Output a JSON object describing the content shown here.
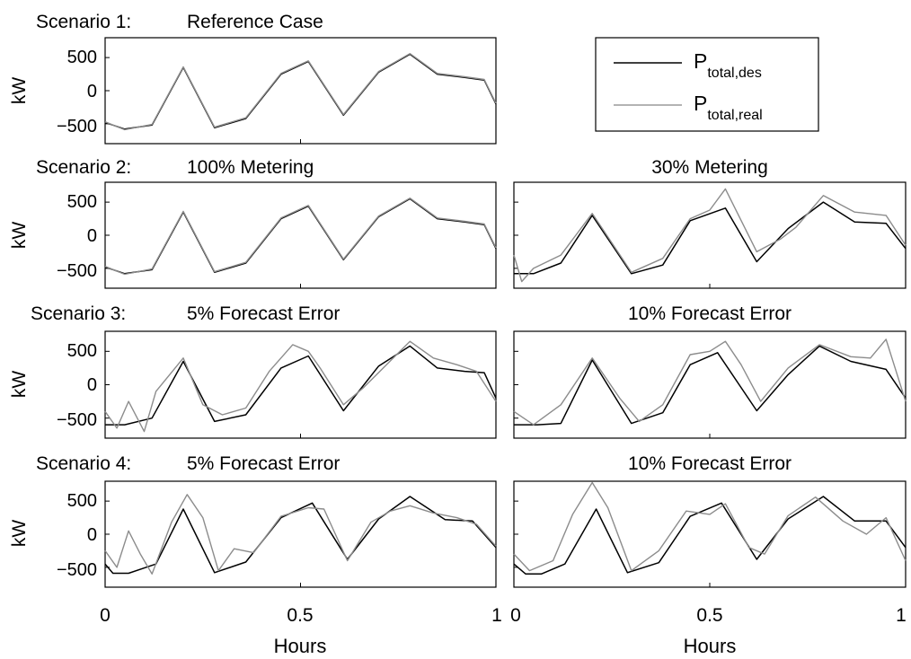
{
  "chart_data": [
    {
      "type": "line",
      "scenario_label": "Scenario 1:",
      "title": "Reference Case",
      "ylabel": "kW",
      "xlabel": "",
      "xlim": [
        0,
        1
      ],
      "ylim": [
        -800,
        800
      ],
      "yticks": [
        "500",
        "0",
        "−500"
      ],
      "xticks": [],
      "series": [
        {
          "name": "des",
          "x": [
            0,
            0.05,
            0.12,
            0.2,
            0.28,
            0.36,
            0.45,
            0.52,
            0.61,
            0.7,
            0.78,
            0.85,
            0.92,
            0.97,
            1.0
          ],
          "y": [
            -480,
            -580,
            -520,
            350,
            -560,
            -420,
            250,
            440,
            -370,
            280,
            550,
            250,
            200,
            160,
            -200
          ]
        },
        {
          "name": "real",
          "x": [
            0,
            0.05,
            0.12,
            0.2,
            0.28,
            0.36,
            0.45,
            0.52,
            0.61,
            0.7,
            0.78,
            0.85,
            0.92,
            0.97,
            1.0
          ],
          "y": [
            -470,
            -590,
            -510,
            360,
            -550,
            -410,
            260,
            450,
            -360,
            290,
            560,
            260,
            210,
            170,
            -190
          ]
        }
      ]
    },
    {
      "type": "line",
      "scenario_label": "Scenario 2:",
      "title": "100% Metering",
      "ylabel": "kW",
      "xlabel": "",
      "xlim": [
        0,
        1
      ],
      "ylim": [
        -800,
        800
      ],
      "yticks": [
        "500",
        "0",
        "−500"
      ],
      "xticks": [],
      "series": [
        {
          "name": "des",
          "x": [
            0,
            0.05,
            0.12,
            0.2,
            0.28,
            0.36,
            0.45,
            0.52,
            0.61,
            0.7,
            0.78,
            0.85,
            0.92,
            0.97,
            1.0
          ],
          "y": [
            -480,
            -580,
            -520,
            350,
            -560,
            -420,
            250,
            440,
            -370,
            280,
            550,
            250,
            200,
            160,
            -200
          ]
        },
        {
          "name": "real",
          "x": [
            0,
            0.05,
            0.12,
            0.2,
            0.28,
            0.36,
            0.45,
            0.52,
            0.61,
            0.7,
            0.78,
            0.85,
            0.92,
            0.97,
            1.0
          ],
          "y": [
            -470,
            -590,
            -510,
            360,
            -550,
            -410,
            260,
            450,
            -360,
            290,
            560,
            260,
            210,
            170,
            -190
          ]
        }
      ]
    },
    {
      "type": "line",
      "scenario_label": "",
      "title": "30% Metering",
      "ylabel": "",
      "xlabel": "",
      "xlim": [
        0,
        1
      ],
      "ylim": [
        -800,
        800
      ],
      "yticks": [],
      "xticks": [],
      "series": [
        {
          "name": "des",
          "x": [
            0,
            0.05,
            0.12,
            0.2,
            0.3,
            0.38,
            0.45,
            0.54,
            0.62,
            0.7,
            0.79,
            0.87,
            0.95,
            1.0
          ],
          "y": [
            -580,
            -580,
            -420,
            300,
            -580,
            -450,
            220,
            410,
            -400,
            100,
            500,
            200,
            180,
            -200
          ]
        },
        {
          "name": "real",
          "x": [
            0,
            0.02,
            0.05,
            0.12,
            0.2,
            0.3,
            0.38,
            0.45,
            0.5,
            0.54,
            0.62,
            0.68,
            0.72,
            0.79,
            0.87,
            0.95,
            1.0
          ],
          "y": [
            -300,
            -700,
            -500,
            -300,
            330,
            -560,
            -350,
            250,
            380,
            700,
            -250,
            -60,
            120,
            600,
            350,
            300,
            -150
          ]
        }
      ]
    },
    {
      "type": "line",
      "scenario_label": "Scenario 3:",
      "title": "5% Forecast Error",
      "ylabel": "kW",
      "xlabel": "",
      "xlim": [
        0,
        1
      ],
      "ylim": [
        -800,
        800
      ],
      "yticks": [
        "500",
        "0",
        "−500"
      ],
      "xticks": [],
      "series": [
        {
          "name": "des",
          "x": [
            0,
            0.05,
            0.12,
            0.2,
            0.28,
            0.36,
            0.45,
            0.52,
            0.61,
            0.7,
            0.78,
            0.85,
            0.92,
            0.97,
            1.0
          ],
          "y": [
            -600,
            -600,
            -500,
            350,
            -550,
            -450,
            250,
            430,
            -390,
            280,
            580,
            250,
            200,
            180,
            -200
          ]
        },
        {
          "name": "real",
          "x": [
            0,
            0.03,
            0.06,
            0.1,
            0.13,
            0.2,
            0.25,
            0.3,
            0.36,
            0.42,
            0.48,
            0.52,
            0.55,
            0.61,
            0.66,
            0.72,
            0.78,
            0.84,
            0.9,
            0.95,
            1.0
          ],
          "y": [
            -400,
            -650,
            -250,
            -700,
            -100,
            400,
            -300,
            -450,
            -350,
            200,
            600,
            500,
            250,
            -300,
            -50,
            300,
            650,
            400,
            300,
            200,
            -250
          ]
        }
      ]
    },
    {
      "type": "line",
      "scenario_label": "",
      "title": "10% Forecast Error",
      "ylabel": "",
      "xlabel": "",
      "xlim": [
        0,
        1
      ],
      "ylim": [
        -800,
        800
      ],
      "yticks": [],
      "xticks": [],
      "series": [
        {
          "name": "des",
          "x": [
            0,
            0.06,
            0.12,
            0.2,
            0.3,
            0.38,
            0.45,
            0.52,
            0.62,
            0.7,
            0.78,
            0.86,
            0.95,
            1.0
          ],
          "y": [
            -600,
            -600,
            -580,
            370,
            -580,
            -420,
            300,
            480,
            -390,
            150,
            580,
            350,
            230,
            -200
          ]
        },
        {
          "name": "real",
          "x": [
            0,
            0.05,
            0.12,
            0.2,
            0.27,
            0.32,
            0.38,
            0.45,
            0.5,
            0.54,
            0.58,
            0.63,
            0.7,
            0.78,
            0.86,
            0.91,
            0.95,
            1.0
          ],
          "y": [
            -400,
            -600,
            -300,
            400,
            -200,
            -550,
            -300,
            450,
            500,
            650,
            300,
            -250,
            250,
            600,
            420,
            400,
            680,
            -250
          ]
        }
      ]
    },
    {
      "type": "line",
      "scenario_label": "Scenario 4:",
      "title": "5% Forecast Error",
      "ylabel": "kW",
      "xlabel": "Hours",
      "xlim": [
        0,
        1
      ],
      "ylim": [
        -800,
        800
      ],
      "yticks": [
        "500",
        "0",
        "−500"
      ],
      "xticks": [
        "0",
        "0.5",
        "1"
      ],
      "series": [
        {
          "name": "des",
          "x": [
            0,
            0.02,
            0.06,
            0.13,
            0.2,
            0.28,
            0.36,
            0.45,
            0.53,
            0.62,
            0.7,
            0.78,
            0.87,
            0.94,
            1.0
          ],
          "y": [
            -450,
            -590,
            -590,
            -450,
            380,
            -580,
            -420,
            250,
            470,
            -380,
            230,
            570,
            220,
            200,
            -200
          ]
        },
        {
          "name": "real",
          "x": [
            0,
            0.03,
            0.06,
            0.09,
            0.12,
            0.17,
            0.21,
            0.25,
            0.29,
            0.33,
            0.38,
            0.45,
            0.52,
            0.56,
            0.62,
            0.68,
            0.73,
            0.78,
            0.84,
            0.9,
            0.95,
            1.0
          ],
          "y": [
            -250,
            -500,
            50,
            -300,
            -600,
            180,
            600,
            250,
            -550,
            -220,
            -280,
            270,
            400,
            380,
            -400,
            180,
            350,
            430,
            320,
            250,
            150,
            -180
          ]
        }
      ]
    },
    {
      "type": "line",
      "scenario_label": "",
      "title": "10% Forecast Error",
      "ylabel": "",
      "xlabel": "Hours",
      "xlim": [
        0,
        1
      ],
      "ylim": [
        -800,
        800
      ],
      "yticks": [],
      "xticks": [
        "0",
        "0.5",
        "1"
      ],
      "series": [
        {
          "name": "des",
          "x": [
            0,
            0.03,
            0.07,
            0.13,
            0.21,
            0.29,
            0.37,
            0.45,
            0.53,
            0.62,
            0.7,
            0.79,
            0.87,
            0.95,
            1.0
          ],
          "y": [
            -450,
            -600,
            -600,
            -450,
            380,
            -580,
            -430,
            270,
            470,
            -380,
            230,
            570,
            200,
            200,
            -200
          ]
        },
        {
          "name": "real",
          "x": [
            0,
            0.04,
            0.1,
            0.15,
            0.2,
            0.24,
            0.3,
            0.37,
            0.44,
            0.5,
            0.54,
            0.6,
            0.64,
            0.7,
            0.77,
            0.84,
            0.9,
            0.95,
            1.0
          ],
          "y": [
            -300,
            -550,
            -400,
            300,
            780,
            400,
            -550,
            -250,
            350,
            300,
            460,
            -200,
            -300,
            280,
            560,
            200,
            0,
            250,
            -400
          ]
        }
      ]
    }
  ],
  "legend": {
    "items": [
      {
        "base": "P",
        "sub": "total,des",
        "color": "#000000"
      },
      {
        "base": "P",
        "sub": "total,real",
        "color": "#9a9a9a"
      }
    ]
  },
  "colors": {
    "des": "#000000",
    "real": "#8c8c8c"
  }
}
